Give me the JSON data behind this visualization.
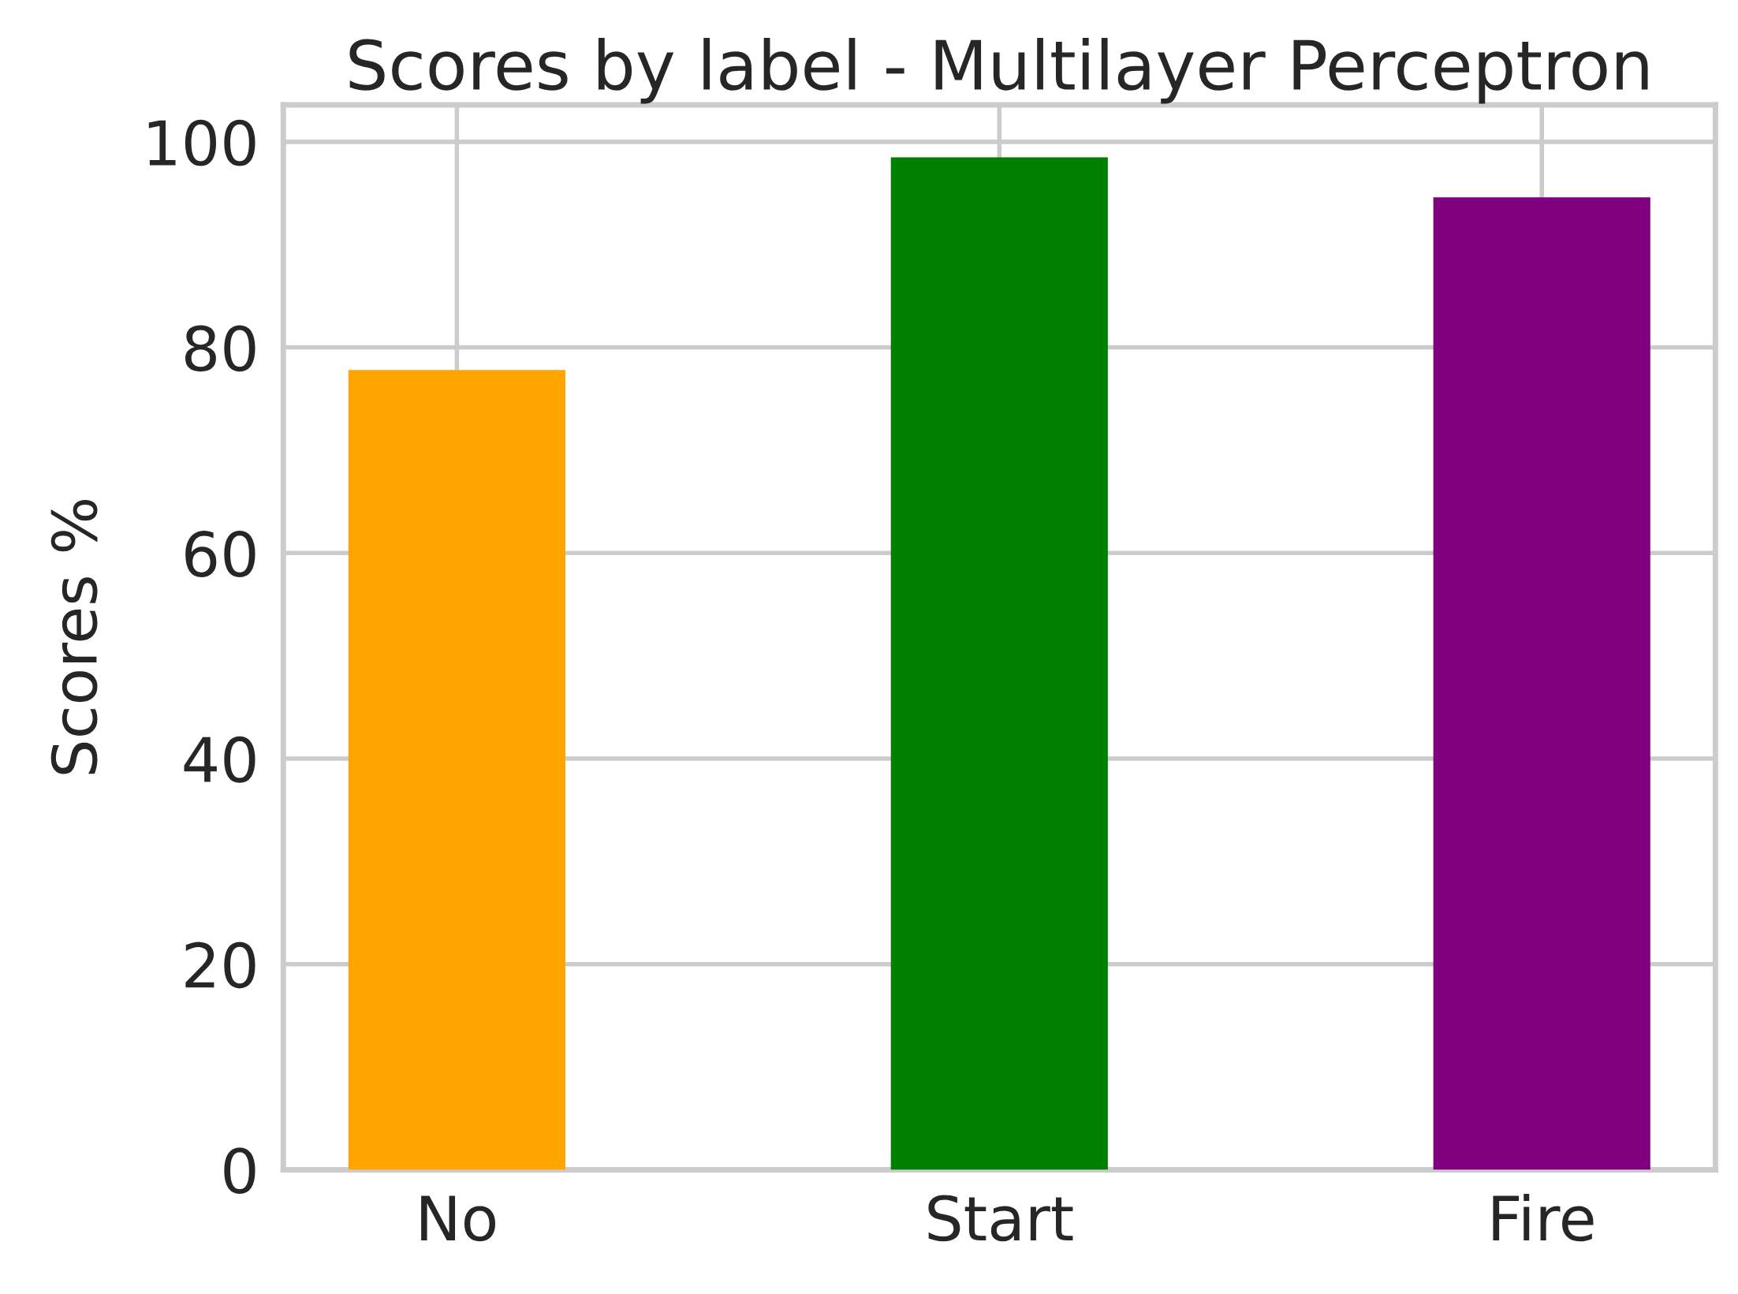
{
  "chart_data": {
    "type": "bar",
    "title": "Scores by label - Multilayer Perceptron",
    "ylabel": "Scores %",
    "categories": [
      "No",
      "Start",
      "Fire"
    ],
    "values": [
      77.8,
      98.5,
      94.6
    ],
    "colors": [
      "#ffa500",
      "#008000",
      "#800080"
    ],
    "ylim": [
      0,
      103.6
    ],
    "yticks": [
      0,
      20,
      40,
      60,
      80,
      100
    ],
    "grid": true
  }
}
